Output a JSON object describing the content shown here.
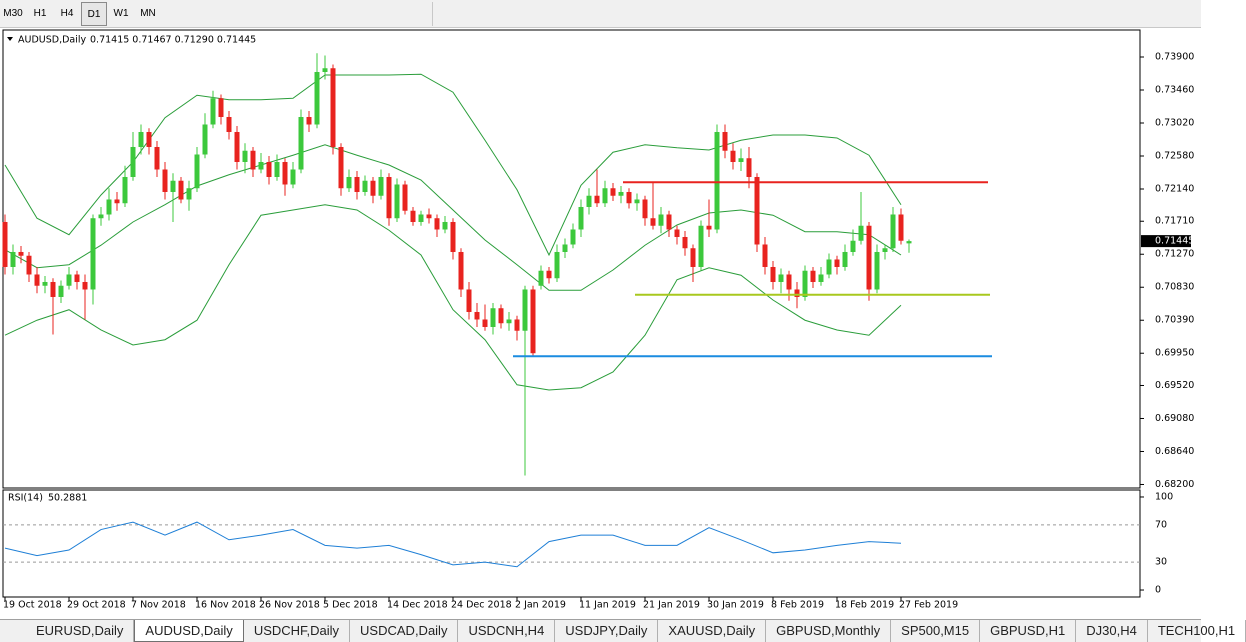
{
  "toolbar": {
    "buttons": [
      "M30",
      "H1",
      "H4",
      "D1",
      "W1",
      "MN"
    ],
    "active": 3
  },
  "chart_data": {
    "type": "candlestick",
    "symbol": "AUDUSD,Daily",
    "ohlc_label": "0.71415 0.71467 0.71290 0.71445",
    "up_color": "#3cc83c",
    "down_color": "#e8231f",
    "ylim": [
      0.68153,
      0.7426
    ],
    "yticks": [
      {
        "value": 0.739,
        "label": "0.73900"
      },
      {
        "value": 0.7346,
        "label": "0.73460"
      },
      {
        "value": 0.7302,
        "label": "0.73020"
      },
      {
        "value": 0.7258,
        "label": "0.72580"
      },
      {
        "value": 0.7214,
        "label": "0.72140"
      },
      {
        "value": 0.7171,
        "label": "0.71710"
      },
      {
        "value": 0.7127,
        "label": "0.71270"
      },
      {
        "value": 0.7083,
        "label": "0.70830"
      },
      {
        "value": 0.7039,
        "label": "0.70390"
      },
      {
        "value": 0.6995,
        "label": "0.69950"
      },
      {
        "value": 0.6952,
        "label": "0.69520"
      },
      {
        "value": 0.6908,
        "label": "0.69080"
      },
      {
        "value": 0.6864,
        "label": "0.68640"
      },
      {
        "value": 0.682,
        "label": "0.68200"
      }
    ],
    "time_labels": [
      "19 Oct 2018",
      "29 Oct 2018",
      "7 Nov 2018",
      "16 Nov 2018",
      "26 Nov 2018",
      "5 Dec 2018",
      "14 Dec 2018",
      "24 Dec 2018",
      "2 Jan 2019",
      "11 Jan 2019",
      "21 Jan 2019",
      "30 Jan 2019",
      "8 Feb 2019",
      "18 Feb 2019",
      "27 Feb 2019"
    ],
    "candles": [
      [
        0.717,
        0.718,
        0.71,
        0.711
      ],
      [
        0.711,
        0.714,
        0.71,
        0.713
      ],
      [
        0.713,
        0.7138,
        0.7115,
        0.7125
      ],
      [
        0.7125,
        0.713,
        0.709,
        0.71
      ],
      [
        0.71,
        0.711,
        0.7075,
        0.7085
      ],
      [
        0.7085,
        0.7098,
        0.7075,
        0.709
      ],
      [
        0.709,
        0.7095,
        0.702,
        0.707
      ],
      [
        0.707,
        0.7092,
        0.7062,
        0.7085
      ],
      [
        0.7085,
        0.711,
        0.708,
        0.71
      ],
      [
        0.71,
        0.7105,
        0.708,
        0.709
      ],
      [
        0.709,
        0.71,
        0.704,
        0.708
      ],
      [
        0.708,
        0.718,
        0.706,
        0.7175
      ],
      [
        0.7175,
        0.719,
        0.7165,
        0.718
      ],
      [
        0.718,
        0.7215,
        0.7172,
        0.72
      ],
      [
        0.72,
        0.721,
        0.7185,
        0.7195
      ],
      [
        0.7195,
        0.7245,
        0.719,
        0.723
      ],
      [
        0.723,
        0.729,
        0.7225,
        0.727
      ],
      [
        0.727,
        0.73,
        0.726,
        0.729
      ],
      [
        0.729,
        0.7295,
        0.726,
        0.727
      ],
      [
        0.727,
        0.7278,
        0.723,
        0.724
      ],
      [
        0.724,
        0.725,
        0.72,
        0.721
      ],
      [
        0.721,
        0.7235,
        0.717,
        0.7225
      ],
      [
        0.7225,
        0.723,
        0.7195,
        0.72
      ],
      [
        0.72,
        0.7225,
        0.7185,
        0.7215
      ],
      [
        0.7215,
        0.727,
        0.721,
        0.726
      ],
      [
        0.726,
        0.7315,
        0.7255,
        0.73
      ],
      [
        0.73,
        0.7345,
        0.7295,
        0.7335
      ],
      [
        0.7335,
        0.734,
        0.73,
        0.731
      ],
      [
        0.731,
        0.7318,
        0.728,
        0.729
      ],
      [
        0.729,
        0.7298,
        0.724,
        0.725
      ],
      [
        0.725,
        0.7275,
        0.7235,
        0.7265
      ],
      [
        0.7265,
        0.727,
        0.723,
        0.724
      ],
      [
        0.724,
        0.7262,
        0.7235,
        0.725
      ],
      [
        0.725,
        0.7258,
        0.722,
        0.723
      ],
      [
        0.723,
        0.726,
        0.7225,
        0.725
      ],
      [
        0.725,
        0.7255,
        0.7205,
        0.722
      ],
      [
        0.722,
        0.725,
        0.7215,
        0.724
      ],
      [
        0.724,
        0.732,
        0.7235,
        0.731
      ],
      [
        0.731,
        0.7318,
        0.729,
        0.73
      ],
      [
        0.73,
        0.7395,
        0.7295,
        0.737
      ],
      [
        0.737,
        0.7392,
        0.736,
        0.7375
      ],
      [
        0.7375,
        0.738,
        0.726,
        0.727
      ],
      [
        0.727,
        0.7275,
        0.7205,
        0.7215
      ],
      [
        0.7215,
        0.724,
        0.721,
        0.723
      ],
      [
        0.723,
        0.7238,
        0.72,
        0.721
      ],
      [
        0.721,
        0.7232,
        0.7205,
        0.7225
      ],
      [
        0.7225,
        0.723,
        0.7195,
        0.7205
      ],
      [
        0.7205,
        0.724,
        0.72,
        0.723
      ],
      [
        0.723,
        0.7235,
        0.7165,
        0.7175
      ],
      [
        0.7175,
        0.7228,
        0.717,
        0.722
      ],
      [
        0.722,
        0.7225,
        0.718,
        0.7185
      ],
      [
        0.7185,
        0.719,
        0.7165,
        0.717
      ],
      [
        0.717,
        0.7185,
        0.7165,
        0.718
      ],
      [
        0.718,
        0.7188,
        0.7168,
        0.7175
      ],
      [
        0.7175,
        0.718,
        0.715,
        0.716
      ],
      [
        0.716,
        0.7178,
        0.7155,
        0.717
      ],
      [
        0.717,
        0.7175,
        0.712,
        0.713
      ],
      [
        0.713,
        0.7135,
        0.707,
        0.708
      ],
      [
        0.708,
        0.709,
        0.704,
        0.705
      ],
      [
        0.705,
        0.7062,
        0.703,
        0.704
      ],
      [
        0.704,
        0.706,
        0.7025,
        0.703
      ],
      [
        0.703,
        0.7062,
        0.702,
        0.7055
      ],
      [
        0.7055,
        0.706,
        0.7028,
        0.7035
      ],
      [
        0.7035,
        0.705,
        0.7025,
        0.704
      ],
      [
        0.704,
        0.7045,
        0.7012,
        0.7025
      ],
      [
        0.7025,
        0.7085,
        0.6832,
        0.708
      ],
      [
        0.708,
        0.7085,
        0.699,
        0.6995
      ],
      [
        0.7085,
        0.7112,
        0.708,
        0.7105
      ],
      [
        0.7105,
        0.711,
        0.7088,
        0.7095
      ],
      [
        0.7095,
        0.714,
        0.709,
        0.713
      ],
      [
        0.713,
        0.7148,
        0.7122,
        0.714
      ],
      [
        0.714,
        0.7168,
        0.7135,
        0.716
      ],
      [
        0.716,
        0.72,
        0.715,
        0.719
      ],
      [
        0.719,
        0.7215,
        0.718,
        0.7205
      ],
      [
        0.7205,
        0.724,
        0.719,
        0.7195
      ],
      [
        0.7195,
        0.7225,
        0.719,
        0.7215
      ],
      [
        0.7215,
        0.7222,
        0.7198,
        0.7205
      ],
      [
        0.7205,
        0.7218,
        0.7195,
        0.721
      ],
      [
        0.721,
        0.7215,
        0.7188,
        0.7195
      ],
      [
        0.7195,
        0.7208,
        0.7185,
        0.72
      ],
      [
        0.72,
        0.7205,
        0.7165,
        0.7175
      ],
      [
        0.7175,
        0.7222,
        0.716,
        0.7165
      ],
      [
        0.7165,
        0.719,
        0.7155,
        0.718
      ],
      [
        0.718,
        0.7185,
        0.715,
        0.716
      ],
      [
        0.716,
        0.7165,
        0.714,
        0.715
      ],
      [
        0.715,
        0.7158,
        0.7125,
        0.7135
      ],
      [
        0.7135,
        0.714,
        0.709,
        0.711
      ],
      [
        0.711,
        0.7172,
        0.7105,
        0.7165
      ],
      [
        0.7165,
        0.72,
        0.715,
        0.716
      ],
      [
        0.716,
        0.73,
        0.7155,
        0.729
      ],
      [
        0.729,
        0.73,
        0.7255,
        0.7265
      ],
      [
        0.7265,
        0.7275,
        0.724,
        0.725
      ],
      [
        0.725,
        0.7268,
        0.7238,
        0.7255
      ],
      [
        0.7255,
        0.727,
        0.7215,
        0.723
      ],
      [
        0.723,
        0.7235,
        0.713,
        0.714
      ],
      [
        0.714,
        0.715,
        0.71,
        0.711
      ],
      [
        0.711,
        0.7118,
        0.708,
        0.709
      ],
      [
        0.709,
        0.7108,
        0.7075,
        0.71
      ],
      [
        0.71,
        0.7105,
        0.7065,
        0.708
      ],
      [
        0.708,
        0.709,
        0.7055,
        0.707
      ],
      [
        0.707,
        0.7112,
        0.7065,
        0.7105
      ],
      [
        0.7105,
        0.711,
        0.7082,
        0.709
      ],
      [
        0.709,
        0.711,
        0.7085,
        0.71
      ],
      [
        0.71,
        0.7128,
        0.7095,
        0.712
      ],
      [
        0.712,
        0.7125,
        0.71,
        0.711
      ],
      [
        0.711,
        0.714,
        0.7105,
        0.713
      ],
      [
        0.713,
        0.716,
        0.7125,
        0.7145
      ],
      [
        0.7145,
        0.721,
        0.714,
        0.7165
      ],
      [
        0.7165,
        0.717,
        0.7065,
        0.708
      ],
      [
        0.708,
        0.714,
        0.7075,
        0.713
      ],
      [
        0.713,
        0.714,
        0.712,
        0.7135
      ],
      [
        0.7135,
        0.719,
        0.713,
        0.718
      ],
      [
        0.718,
        0.7188,
        0.714,
        0.7145
      ],
      [
        0.71415,
        0.71467,
        0.7129,
        0.71445
      ]
    ],
    "bands": {
      "color": "#2a9d3a",
      "x": [
        0,
        4,
        8,
        12,
        16,
        20,
        24,
        28,
        32,
        36,
        40,
        44,
        48,
        52,
        56,
        60,
        64,
        68,
        72,
        76,
        80,
        84,
        88,
        92,
        96,
        100,
        104,
        108,
        112
      ],
      "upper": [
        0.7246,
        0.7175,
        0.7153,
        0.7206,
        0.725,
        0.7309,
        0.7339,
        0.7333,
        0.7333,
        0.7335,
        0.7366,
        0.7366,
        0.7366,
        0.7367,
        0.7343,
        0.7279,
        0.7213,
        0.7126,
        0.7219,
        0.7263,
        0.7273,
        0.7269,
        0.7266,
        0.7279,
        0.7286,
        0.7286,
        0.7282,
        0.7259,
        0.7193
      ],
      "middle": [
        0.7133,
        0.7109,
        0.7113,
        0.7139,
        0.717,
        0.7193,
        0.7218,
        0.7233,
        0.7246,
        0.7259,
        0.7273,
        0.7259,
        0.7246,
        0.7226,
        0.7186,
        0.7146,
        0.7113,
        0.7079,
        0.7079,
        0.7106,
        0.7139,
        0.7166,
        0.7182,
        0.7186,
        0.7179,
        0.7157,
        0.7157,
        0.7153,
        0.7126
      ],
      "lower": [
        0.7019,
        0.7039,
        0.7053,
        0.7026,
        0.7006,
        0.7013,
        0.7039,
        0.7113,
        0.7179,
        0.7186,
        0.7193,
        0.7186,
        0.7159,
        0.7126,
        0.7053,
        0.7013,
        0.6953,
        0.6946,
        0.6949,
        0.697,
        0.7019,
        0.7093,
        0.7109,
        0.7099,
        0.7066,
        0.7039,
        0.7026,
        0.7019,
        0.7059
      ]
    },
    "levels": [
      {
        "value": 0.7223,
        "color": "#e8231f"
      },
      {
        "value": 0.7073,
        "color": "#a8c81e"
      },
      {
        "value": 0.6991,
        "color": "#1a8ce0"
      }
    ],
    "rsi": {
      "label": "RSI(14)",
      "color": "#1e7fd6",
      "ylim": [
        -7.5,
        107.5
      ],
      "yticks": [
        0,
        30,
        70,
        100
      ],
      "x": [
        0,
        4,
        8,
        12,
        16,
        20,
        24,
        28,
        32,
        36,
        40,
        44,
        48,
        52,
        56,
        60,
        64,
        68,
        72,
        76,
        80,
        84,
        88,
        92,
        96,
        100,
        104,
        108,
        112
      ],
      "values": [
        45,
        37,
        43,
        65,
        73,
        59,
        73,
        54,
        59,
        65,
        48,
        45,
        48,
        38,
        27,
        30,
        25,
        52,
        59,
        59,
        48,
        48,
        67,
        54,
        40,
        43,
        48,
        52,
        50.2881
      ]
    }
  },
  "tabs": {
    "items": [
      "EURUSD,Daily",
      "AUDUSD,Daily",
      "USDCHF,Daily",
      "USDCAD,Daily",
      "USDCNH,H4",
      "USDJPY,Daily",
      "XAUUSD,Daily",
      "GBPUSD,Monthly",
      "SP500,M15",
      "GBPUSD,H1",
      "DJ30,H4",
      "TECH100,H1"
    ],
    "active": 1
  }
}
